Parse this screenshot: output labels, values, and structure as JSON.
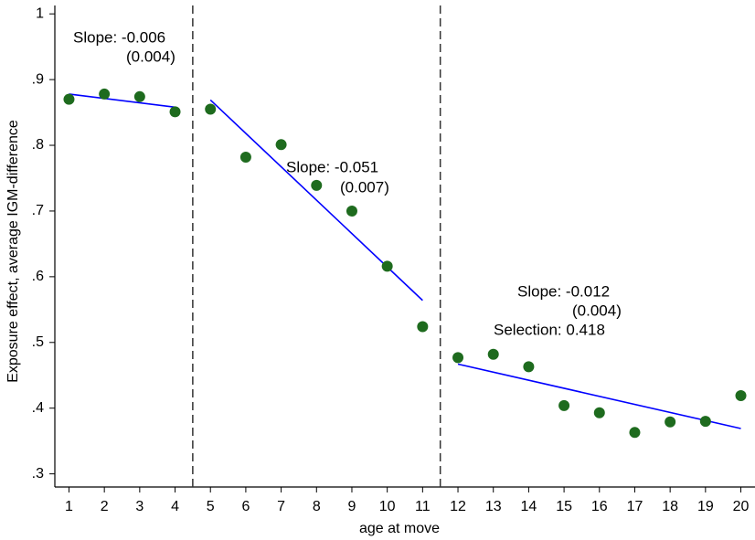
{
  "chart_data": {
    "type": "scatter",
    "x_label": "age at move",
    "y_label": "Exposure effect, average IGM-difference",
    "x": [
      1,
      2,
      3,
      4,
      5,
      6,
      7,
      8,
      9,
      10,
      11,
      12,
      13,
      14,
      15,
      16,
      17,
      18,
      19,
      20
    ],
    "values": [
      0.87,
      0.878,
      0.874,
      0.851,
      0.855,
      0.782,
      0.801,
      0.739,
      0.7,
      0.616,
      0.524,
      0.477,
      0.482,
      0.463,
      0.404,
      0.393,
      0.363,
      0.379,
      0.38,
      0.419
    ],
    "color": "#1e6b1e",
    "fits": [
      {
        "x": [
          1,
          4
        ],
        "values": [
          0.878,
          0.858
        ]
      },
      {
        "x": [
          5,
          11
        ],
        "values": [
          0.869,
          0.564
        ]
      },
      {
        "x": [
          12,
          20
        ],
        "values": [
          0.467,
          0.369
        ]
      }
    ],
    "fit_color": "#0000ff",
    "vlines": [
      4.5,
      11.5
    ],
    "annotations": [
      "Slope: -0.006",
      "(0.004)",
      "Slope: -0.051",
      "(0.007)",
      "Slope: -0.012",
      "(0.004)",
      "Selection: 0.418"
    ],
    "xlim": [
      0.6,
      20.4
    ],
    "ylim": [
      0.28,
      1.01
    ],
    "xticks": [
      1,
      2,
      3,
      4,
      5,
      6,
      7,
      8,
      9,
      10,
      11,
      12,
      13,
      14,
      15,
      16,
      17,
      18,
      19,
      20
    ],
    "yticks": [
      {
        "value": 0.3,
        "label": ".3"
      },
      {
        "value": 0.4,
        "label": ".4"
      },
      {
        "value": 0.5,
        "label": ".5"
      },
      {
        "value": 0.6,
        "label": ".6"
      },
      {
        "value": 0.7,
        "label": ".7"
      },
      {
        "value": 0.8,
        "label": ".8"
      },
      {
        "value": 0.9,
        "label": ".9"
      },
      1
    ]
  }
}
